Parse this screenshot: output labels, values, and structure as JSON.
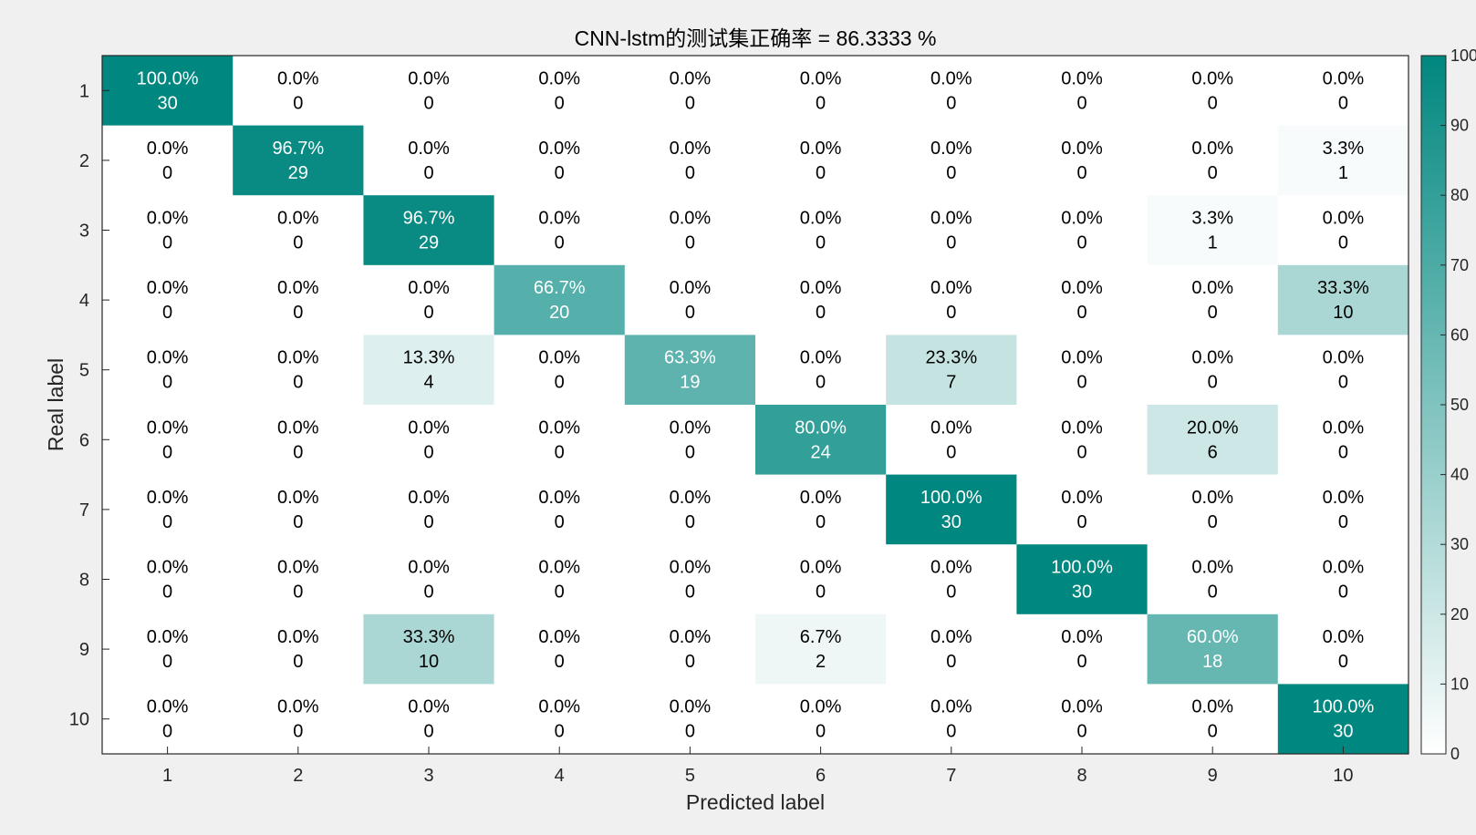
{
  "chart_data": {
    "type": "heatmap",
    "title": "CNN-lstm的测试集正确率 = 86.3333 %",
    "xlabel": "Predicted label",
    "ylabel": "Real label",
    "x_ticks": [
      "1",
      "2",
      "3",
      "4",
      "5",
      "6",
      "7",
      "8",
      "9",
      "10"
    ],
    "y_ticks": [
      "1",
      "2",
      "3",
      "4",
      "5",
      "6",
      "7",
      "8",
      "9",
      "10"
    ],
    "counts": [
      [
        30,
        0,
        0,
        0,
        0,
        0,
        0,
        0,
        0,
        0
      ],
      [
        0,
        29,
        0,
        0,
        0,
        0,
        0,
        0,
        0,
        1
      ],
      [
        0,
        0,
        29,
        0,
        0,
        0,
        0,
        0,
        1,
        0
      ],
      [
        0,
        0,
        0,
        20,
        0,
        0,
        0,
        0,
        0,
        10
      ],
      [
        0,
        0,
        4,
        0,
        19,
        0,
        7,
        0,
        0,
        0
      ],
      [
        0,
        0,
        0,
        0,
        0,
        24,
        0,
        0,
        6,
        0
      ],
      [
        0,
        0,
        0,
        0,
        0,
        0,
        30,
        0,
        0,
        0
      ],
      [
        0,
        0,
        0,
        0,
        0,
        0,
        0,
        30,
        0,
        0
      ],
      [
        0,
        0,
        10,
        0,
        0,
        2,
        0,
        0,
        18,
        0
      ],
      [
        0,
        0,
        0,
        0,
        0,
        0,
        0,
        0,
        0,
        30
      ]
    ],
    "percent_labels": [
      [
        "100.0%",
        "0.0%",
        "0.0%",
        "0.0%",
        "0.0%",
        "0.0%",
        "0.0%",
        "0.0%",
        "0.0%",
        "0.0%"
      ],
      [
        "0.0%",
        "96.7%",
        "0.0%",
        "0.0%",
        "0.0%",
        "0.0%",
        "0.0%",
        "0.0%",
        "0.0%",
        "3.3%"
      ],
      [
        "0.0%",
        "0.0%",
        "96.7%",
        "0.0%",
        "0.0%",
        "0.0%",
        "0.0%",
        "0.0%",
        "3.3%",
        "0.0%"
      ],
      [
        "0.0%",
        "0.0%",
        "0.0%",
        "66.7%",
        "0.0%",
        "0.0%",
        "0.0%",
        "0.0%",
        "0.0%",
        "33.3%"
      ],
      [
        "0.0%",
        "0.0%",
        "13.3%",
        "0.0%",
        "63.3%",
        "0.0%",
        "23.3%",
        "0.0%",
        "0.0%",
        "0.0%"
      ],
      [
        "0.0%",
        "0.0%",
        "0.0%",
        "0.0%",
        "0.0%",
        "80.0%",
        "0.0%",
        "0.0%",
        "20.0%",
        "0.0%"
      ],
      [
        "0.0%",
        "0.0%",
        "0.0%",
        "0.0%",
        "0.0%",
        "0.0%",
        "100.0%",
        "0.0%",
        "0.0%",
        "0.0%"
      ],
      [
        "0.0%",
        "0.0%",
        "0.0%",
        "0.0%",
        "0.0%",
        "0.0%",
        "0.0%",
        "100.0%",
        "0.0%",
        "0.0%"
      ],
      [
        "0.0%",
        "0.0%",
        "33.3%",
        "0.0%",
        "0.0%",
        "6.7%",
        "0.0%",
        "0.0%",
        "60.0%",
        "0.0%"
      ],
      [
        "0.0%",
        "0.0%",
        "0.0%",
        "0.0%",
        "0.0%",
        "0.0%",
        "0.0%",
        "0.0%",
        "0.0%",
        "100.0%"
      ]
    ],
    "colorbar": {
      "min": 0,
      "max": 100,
      "ticks": [
        "0",
        "10",
        "20",
        "30",
        "40",
        "50",
        "60",
        "70",
        "80",
        "90",
        "100"
      ]
    },
    "colors": {
      "low": "#ffffff",
      "high": "#00877f",
      "text_dark": "#000000",
      "text_light": "#ffffff"
    }
  }
}
